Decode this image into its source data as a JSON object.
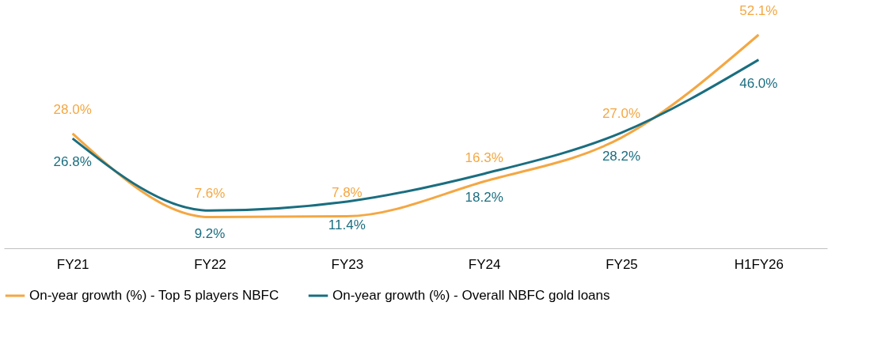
{
  "chart_data": {
    "type": "line",
    "categories": [
      "FY21",
      "FY22",
      "FY23",
      "FY24",
      "FY25",
      "H1FY26"
    ],
    "series": [
      {
        "name": "On-year growth (%) - Top 5 players NBFC",
        "color": "#f4a742",
        "values": [
          28.0,
          7.6,
          7.8,
          16.3,
          27.0,
          52.1
        ],
        "value_labels": [
          "28.0%",
          "7.6%",
          "7.8%",
          "16.3%",
          "27.0%",
          "52.1%"
        ]
      },
      {
        "name": "On-year growth (%) - Overall NBFC gold loans",
        "color": "#1a6e80",
        "values": [
          26.8,
          9.2,
          11.4,
          18.2,
          28.2,
          46.0
        ],
        "value_labels": [
          "26.8%",
          "9.2%",
          "11.4%",
          "18.2%",
          "28.2%",
          "46.0%"
        ]
      }
    ],
    "legend": "bottom",
    "grid": false,
    "marker": "none",
    "line_style": "solid"
  }
}
